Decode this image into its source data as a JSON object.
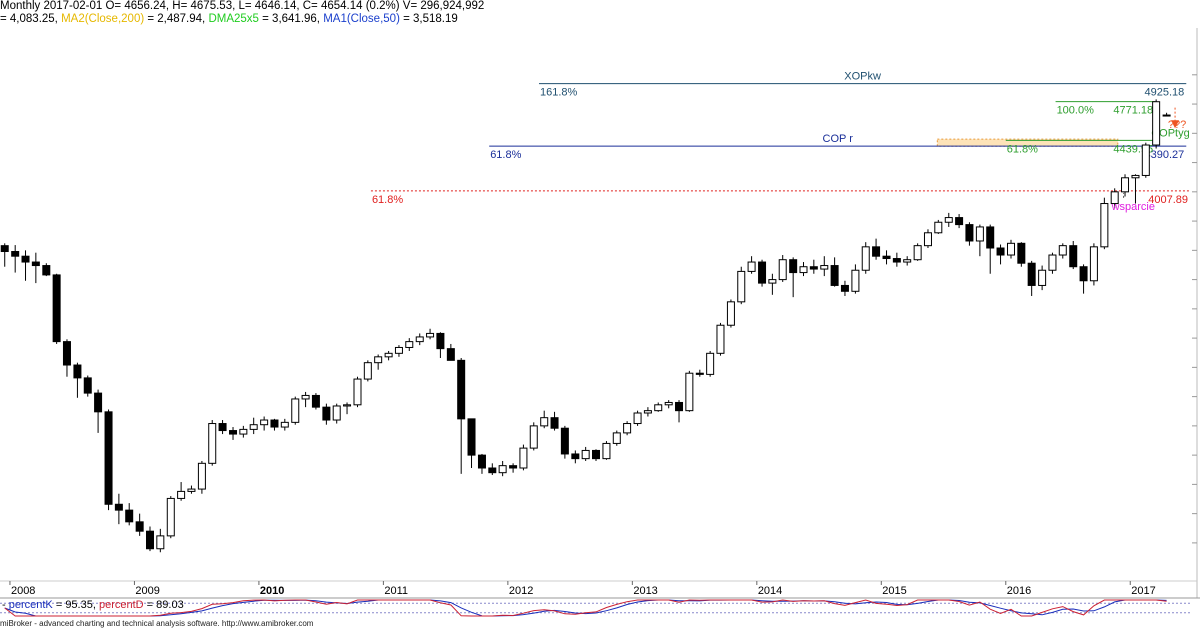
{
  "header": {
    "line1": "Monthly 2017-02-01 O= 4656.24, H= 4675.53, L= 4646.14, C= 4654.14 (0.2%) V= 296,924,992",
    "line2": [
      {
        "text": "= 4,083.25, ",
        "color": "#000000"
      },
      {
        "text": "MA2(Close,200)",
        "color": "#e6b800"
      },
      {
        "text": " = 2,487.94, ",
        "color": "#000000"
      },
      {
        "text": "DMA25x5",
        "color": "#1fcc1f"
      },
      {
        "text": " = 3,641.96, ",
        "color": "#000000"
      },
      {
        "text": "MA1(Close,50)",
        "color": "#1a3fcc"
      },
      {
        "text": " = 3,518.19",
        "color": "#000000"
      }
    ]
  },
  "footer": {
    "text": "miBroker - advanced charting and technical analysis software. http://www.amibroker.com"
  },
  "colors": {
    "up_candle": "#ffffff",
    "down_candle": "#000000",
    "xop_line": "#1f4f6f",
    "cop_line": "#1a2f99",
    "copt_line": "#2e9e2e",
    "support_line": "#e0201f",
    "zone_fill": "#fde3b8",
    "zone_stroke": "#e89a3c",
    "arrow": "#ee5522",
    "pctK": "#cc2233",
    "pctD": "#1a2fbb"
  },
  "chart_data": {
    "type": "candlestick",
    "timeframe": "Monthly",
    "ylim": [
      700,
      5400
    ],
    "xlim": [
      2007.92,
      2017.48
    ],
    "x_tick_labels": [
      "2008",
      "2009",
      "2010",
      "2011",
      "2012",
      "2013",
      "2014",
      "2015",
      "2016",
      "2017"
    ],
    "candles": [
      {
        "t": 2007.958,
        "o": 3540,
        "h": 3560,
        "l": 3360,
        "c": 3490
      },
      {
        "t": 2008.042,
        "o": 3490,
        "h": 3545,
        "l": 3310,
        "c": 3450
      },
      {
        "t": 2008.125,
        "o": 3450,
        "h": 3500,
        "l": 3240,
        "c": 3400
      },
      {
        "t": 2008.208,
        "o": 3400,
        "h": 3480,
        "l": 3220,
        "c": 3370
      },
      {
        "t": 2008.292,
        "o": 3370,
        "h": 3390,
        "l": 3280,
        "c": 3290
      },
      {
        "t": 2008.375,
        "o": 3290,
        "h": 3300,
        "l": 2700,
        "c": 2720
      },
      {
        "t": 2008.458,
        "o": 2720,
        "h": 2740,
        "l": 2420,
        "c": 2520
      },
      {
        "t": 2008.542,
        "o": 2520,
        "h": 2540,
        "l": 2240,
        "c": 2410
      },
      {
        "t": 2008.625,
        "o": 2410,
        "h": 2430,
        "l": 2250,
        "c": 2280
      },
      {
        "t": 2008.708,
        "o": 2280,
        "h": 2310,
        "l": 1940,
        "c": 2120
      },
      {
        "t": 2008.792,
        "o": 2120,
        "h": 2140,
        "l": 1280,
        "c": 1330
      },
      {
        "t": 2008.875,
        "o": 1330,
        "h": 1420,
        "l": 1160,
        "c": 1280
      },
      {
        "t": 2008.958,
        "o": 1280,
        "h": 1340,
        "l": 1150,
        "c": 1180
      },
      {
        "t": 2009.042,
        "o": 1180,
        "h": 1250,
        "l": 1060,
        "c": 1100
      },
      {
        "t": 2009.125,
        "o": 1100,
        "h": 1140,
        "l": 930,
        "c": 950
      },
      {
        "t": 2009.208,
        "o": 950,
        "h": 1120,
        "l": 920,
        "c": 1060
      },
      {
        "t": 2009.292,
        "o": 1060,
        "h": 1400,
        "l": 1040,
        "c": 1380
      },
      {
        "t": 2009.375,
        "o": 1380,
        "h": 1520,
        "l": 1360,
        "c": 1440
      },
      {
        "t": 2009.458,
        "o": 1440,
        "h": 1490,
        "l": 1420,
        "c": 1460
      },
      {
        "t": 2009.542,
        "o": 1460,
        "h": 1700,
        "l": 1420,
        "c": 1680
      },
      {
        "t": 2009.625,
        "o": 1680,
        "h": 2050,
        "l": 1660,
        "c": 2020
      },
      {
        "t": 2009.708,
        "o": 2020,
        "h": 2050,
        "l": 1930,
        "c": 1960
      },
      {
        "t": 2009.792,
        "o": 1960,
        "h": 1990,
        "l": 1880,
        "c": 1930
      },
      {
        "t": 2009.875,
        "o": 1930,
        "h": 2000,
        "l": 1900,
        "c": 1970
      },
      {
        "t": 2009.958,
        "o": 1970,
        "h": 2070,
        "l": 1930,
        "c": 2010
      },
      {
        "t": 2010.042,
        "o": 2010,
        "h": 2080,
        "l": 1960,
        "c": 2050
      },
      {
        "t": 2010.125,
        "o": 2050,
        "h": 2060,
        "l": 1960,
        "c": 1990
      },
      {
        "t": 2010.208,
        "o": 1990,
        "h": 2060,
        "l": 1960,
        "c": 2030
      },
      {
        "t": 2010.292,
        "o": 2030,
        "h": 2250,
        "l": 2010,
        "c": 2230
      },
      {
        "t": 2010.375,
        "o": 2230,
        "h": 2290,
        "l": 2160,
        "c": 2260
      },
      {
        "t": 2010.458,
        "o": 2260,
        "h": 2280,
        "l": 2140,
        "c": 2160
      },
      {
        "t": 2010.542,
        "o": 2160,
        "h": 2190,
        "l": 2010,
        "c": 2050
      },
      {
        "t": 2010.625,
        "o": 2050,
        "h": 2190,
        "l": 2020,
        "c": 2170
      },
      {
        "t": 2010.708,
        "o": 2170,
        "h": 2200,
        "l": 2100,
        "c": 2180
      },
      {
        "t": 2010.792,
        "o": 2180,
        "h": 2420,
        "l": 2160,
        "c": 2400
      },
      {
        "t": 2010.875,
        "o": 2400,
        "h": 2560,
        "l": 2380,
        "c": 2540
      },
      {
        "t": 2010.958,
        "o": 2540,
        "h": 2610,
        "l": 2480,
        "c": 2590
      },
      {
        "t": 2011.042,
        "o": 2590,
        "h": 2640,
        "l": 2560,
        "c": 2620
      },
      {
        "t": 2011.125,
        "o": 2620,
        "h": 2690,
        "l": 2590,
        "c": 2670
      },
      {
        "t": 2011.208,
        "o": 2670,
        "h": 2750,
        "l": 2640,
        "c": 2720
      },
      {
        "t": 2011.292,
        "o": 2720,
        "h": 2790,
        "l": 2690,
        "c": 2760
      },
      {
        "t": 2011.375,
        "o": 2760,
        "h": 2830,
        "l": 2740,
        "c": 2790
      },
      {
        "t": 2011.458,
        "o": 2790,
        "h": 2800,
        "l": 2580,
        "c": 2660
      },
      {
        "t": 2011.542,
        "o": 2660,
        "h": 2700,
        "l": 2560,
        "c": 2560
      },
      {
        "t": 2011.625,
        "o": 2560,
        "h": 2580,
        "l": 1590,
        "c": 2060
      },
      {
        "t": 2011.708,
        "o": 2060,
        "h": 2060,
        "l": 1640,
        "c": 1750
      },
      {
        "t": 2011.792,
        "o": 1750,
        "h": 1760,
        "l": 1590,
        "c": 1640
      },
      {
        "t": 2011.875,
        "o": 1640,
        "h": 1680,
        "l": 1580,
        "c": 1600
      },
      {
        "t": 2011.958,
        "o": 1600,
        "h": 1700,
        "l": 1570,
        "c": 1660
      },
      {
        "t": 2012.042,
        "o": 1660,
        "h": 1680,
        "l": 1600,
        "c": 1640
      },
      {
        "t": 2012.125,
        "o": 1640,
        "h": 1840,
        "l": 1620,
        "c": 1810
      },
      {
        "t": 2012.208,
        "o": 1810,
        "h": 2030,
        "l": 1790,
        "c": 2000
      },
      {
        "t": 2012.292,
        "o": 2000,
        "h": 2130,
        "l": 1980,
        "c": 2070
      },
      {
        "t": 2012.375,
        "o": 2070,
        "h": 2120,
        "l": 1960,
        "c": 1980
      },
      {
        "t": 2012.458,
        "o": 1980,
        "h": 2000,
        "l": 1720,
        "c": 1760
      },
      {
        "t": 2012.542,
        "o": 1760,
        "h": 1790,
        "l": 1680,
        "c": 1720
      },
      {
        "t": 2012.625,
        "o": 1720,
        "h": 1820,
        "l": 1700,
        "c": 1790
      },
      {
        "t": 2012.708,
        "o": 1790,
        "h": 1800,
        "l": 1700,
        "c": 1720
      },
      {
        "t": 2012.792,
        "o": 1720,
        "h": 1870,
        "l": 1710,
        "c": 1850
      },
      {
        "t": 2012.875,
        "o": 1850,
        "h": 1960,
        "l": 1830,
        "c": 1940
      },
      {
        "t": 2012.958,
        "o": 1940,
        "h": 2040,
        "l": 1920,
        "c": 2020
      },
      {
        "t": 2013.042,
        "o": 2020,
        "h": 2130,
        "l": 2000,
        "c": 2110
      },
      {
        "t": 2013.125,
        "o": 2110,
        "h": 2160,
        "l": 2080,
        "c": 2130
      },
      {
        "t": 2013.208,
        "o": 2130,
        "h": 2200,
        "l": 2120,
        "c": 2180
      },
      {
        "t": 2013.292,
        "o": 2180,
        "h": 2220,
        "l": 2150,
        "c": 2200
      },
      {
        "t": 2013.375,
        "o": 2200,
        "h": 2220,
        "l": 2030,
        "c": 2130
      },
      {
        "t": 2013.458,
        "o": 2130,
        "h": 2470,
        "l": 2120,
        "c": 2450
      },
      {
        "t": 2013.542,
        "o": 2450,
        "h": 2480,
        "l": 2420,
        "c": 2440
      },
      {
        "t": 2013.625,
        "o": 2440,
        "h": 2640,
        "l": 2420,
        "c": 2620
      },
      {
        "t": 2013.708,
        "o": 2620,
        "h": 2880,
        "l": 2600,
        "c": 2860
      },
      {
        "t": 2013.792,
        "o": 2860,
        "h": 3080,
        "l": 2840,
        "c": 3060
      },
      {
        "t": 2013.875,
        "o": 3060,
        "h": 3360,
        "l": 3040,
        "c": 3320
      },
      {
        "t": 2013.958,
        "o": 3320,
        "h": 3450,
        "l": 3300,
        "c": 3400
      },
      {
        "t": 2014.042,
        "o": 3400,
        "h": 3420,
        "l": 3190,
        "c": 3220
      },
      {
        "t": 2014.125,
        "o": 3220,
        "h": 3300,
        "l": 3120,
        "c": 3250
      },
      {
        "t": 2014.208,
        "o": 3250,
        "h": 3460,
        "l": 3230,
        "c": 3420
      },
      {
        "t": 2014.292,
        "o": 3420,
        "h": 3440,
        "l": 3100,
        "c": 3310
      },
      {
        "t": 2014.375,
        "o": 3310,
        "h": 3400,
        "l": 3280,
        "c": 3360
      },
      {
        "t": 2014.458,
        "o": 3360,
        "h": 3420,
        "l": 3300,
        "c": 3340
      },
      {
        "t": 2014.542,
        "o": 3340,
        "h": 3450,
        "l": 3280,
        "c": 3370
      },
      {
        "t": 2014.625,
        "o": 3370,
        "h": 3440,
        "l": 3190,
        "c": 3200
      },
      {
        "t": 2014.708,
        "o": 3200,
        "h": 3240,
        "l": 3110,
        "c": 3150
      },
      {
        "t": 2014.792,
        "o": 3150,
        "h": 3380,
        "l": 3130,
        "c": 3330
      },
      {
        "t": 2014.875,
        "o": 3330,
        "h": 3570,
        "l": 3300,
        "c": 3530
      },
      {
        "t": 2014.958,
        "o": 3530,
        "h": 3600,
        "l": 3420,
        "c": 3450
      },
      {
        "t": 2015.042,
        "o": 3450,
        "h": 3500,
        "l": 3380,
        "c": 3430
      },
      {
        "t": 2015.125,
        "o": 3430,
        "h": 3480,
        "l": 3360,
        "c": 3400
      },
      {
        "t": 2015.208,
        "o": 3400,
        "h": 3450,
        "l": 3370,
        "c": 3420
      },
      {
        "t": 2015.292,
        "o": 3420,
        "h": 3560,
        "l": 3410,
        "c": 3540
      },
      {
        "t": 2015.375,
        "o": 3540,
        "h": 3680,
        "l": 3520,
        "c": 3650
      },
      {
        "t": 2015.458,
        "o": 3650,
        "h": 3760,
        "l": 3640,
        "c": 3740
      },
      {
        "t": 2015.542,
        "o": 3740,
        "h": 3820,
        "l": 3700,
        "c": 3780
      },
      {
        "t": 2015.625,
        "o": 3780,
        "h": 3810,
        "l": 3690,
        "c": 3720
      },
      {
        "t": 2015.708,
        "o": 3720,
        "h": 3740,
        "l": 3540,
        "c": 3580
      },
      {
        "t": 2015.792,
        "o": 3580,
        "h": 3720,
        "l": 3450,
        "c": 3700
      },
      {
        "t": 2015.875,
        "o": 3700,
        "h": 3720,
        "l": 3300,
        "c": 3520
      },
      {
        "t": 2015.958,
        "o": 3520,
        "h": 3550,
        "l": 3380,
        "c": 3460
      },
      {
        "t": 2016.042,
        "o": 3460,
        "h": 3590,
        "l": 3430,
        "c": 3560
      },
      {
        "t": 2016.125,
        "o": 3560,
        "h": 3570,
        "l": 3360,
        "c": 3390
      },
      {
        "t": 2016.208,
        "o": 3390,
        "h": 3410,
        "l": 3110,
        "c": 3200
      },
      {
        "t": 2016.292,
        "o": 3200,
        "h": 3370,
        "l": 3160,
        "c": 3330
      },
      {
        "t": 2016.375,
        "o": 3330,
        "h": 3480,
        "l": 3300,
        "c": 3460
      },
      {
        "t": 2016.458,
        "o": 3460,
        "h": 3560,
        "l": 3430,
        "c": 3540
      },
      {
        "t": 2016.542,
        "o": 3540,
        "h": 3580,
        "l": 3340,
        "c": 3360
      },
      {
        "t": 2016.625,
        "o": 3360,
        "h": 3380,
        "l": 3130,
        "c": 3240
      },
      {
        "t": 2016.708,
        "o": 3240,
        "h": 3560,
        "l": 3200,
        "c": 3530
      },
      {
        "t": 2016.792,
        "o": 3530,
        "h": 3950,
        "l": 3510,
        "c": 3900
      },
      {
        "t": 2016.875,
        "o": 3900,
        "h": 4030,
        "l": 3860,
        "c": 4000
      },
      {
        "t": 2016.958,
        "o": 4000,
        "h": 4150,
        "l": 3960,
        "c": 4120
      },
      {
        "t": 2017.042,
        "o": 4120,
        "h": 4150,
        "l": 3900,
        "c": 4140
      },
      {
        "t": 2017.125,
        "o": 4140,
        "h": 4420,
        "l": 4120,
        "c": 4400
      },
      {
        "t": 2017.208,
        "o": 4400,
        "h": 4790,
        "l": 4370,
        "c": 4770
      },
      {
        "t": 2017.292,
        "o": 4656.24,
        "h": 4675.53,
        "l": 4646.14,
        "c": 4654.14
      }
    ],
    "levels": [
      {
        "name": "XOPkw",
        "pct": "161.8%",
        "value": 4925.18,
        "value_label": "4925.18",
        "x1": 2012.25,
        "x2": 2017.45,
        "color": "#1f4f6f",
        "dotted": false
      },
      {
        "name": "",
        "pct": "100.0%",
        "value": 4771.18,
        "value_label": "4771.18",
        "x1": 2016.4,
        "x2": 2017.2,
        "color": "#2e9e2e",
        "dotted": false
      },
      {
        "name": "COP r",
        "pct": "61.8%",
        "value": 4390.27,
        "value_label": "4390.27",
        "x1": 2011.85,
        "x2": 2017.45,
        "color": "#1a2f99",
        "dotted": false
      },
      {
        "name": "COPtyg",
        "pct": "61.8%",
        "value": 4439.95,
        "value_label": "4439.95",
        "x1": 2016.0,
        "x2": 2017.2,
        "color": "#2e9e2e",
        "dotted": false
      },
      {
        "name": "",
        "pct": "61.8%",
        "value": 4007.89,
        "value_label": "4007.89",
        "x1": 2010.9,
        "x2": 2017.48,
        "color": "#e0201f",
        "dotted": true
      }
    ],
    "zone": {
      "from": 4390,
      "to": 4450,
      "x1": 2015.45,
      "x2": 2016.9
    },
    "annotations": {
      "support": {
        "text": "wsparcie",
        "value": 3880,
        "t": 2016.85,
        "color": "#e020e0"
      },
      "question": {
        "text": "???",
        "value": 4580,
        "t": 2017.45,
        "color": "#ee5522"
      },
      "arrow": {
        "t": 2017.36,
        "from": 4720,
        "to": 4560
      }
    },
    "oscillator": {
      "label_k": "percentK",
      "value_k": "95.35",
      "label_d": "percentD",
      "value_d": "89.03",
      "ylim": [
        0,
        100
      ]
    }
  }
}
